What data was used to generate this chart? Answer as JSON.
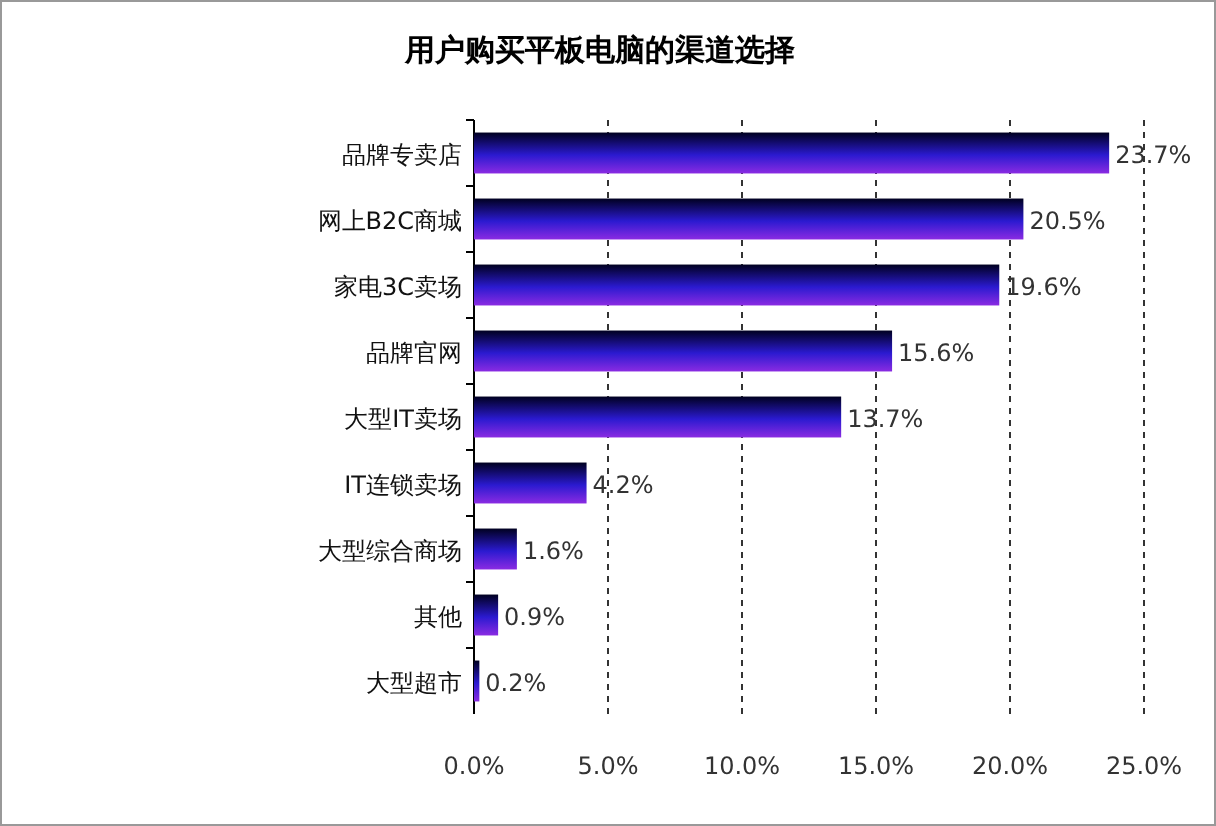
{
  "chart_data": {
    "type": "bar",
    "orientation": "horizontal",
    "title": "用户购买平板电脑的渠道选择",
    "categories": [
      "品牌专卖店",
      "网上B2C商城",
      "家电3C卖场",
      "品牌官网",
      "大型IT卖场",
      "IT连锁卖场",
      "大型综合商场",
      "其他",
      "大型超市"
    ],
    "values": [
      23.7,
      20.5,
      19.6,
      15.6,
      13.7,
      4.2,
      1.6,
      0.9,
      0.2
    ],
    "value_labels": [
      "23.7%",
      "20.5%",
      "19.6%",
      "15.6%",
      "13.7%",
      "4.2%",
      "1.6%",
      "0.9%",
      "0.2%"
    ],
    "color": "#2b1ad0",
    "xlim": [
      0,
      25
    ],
    "xticks": [
      {
        "value": 0,
        "label": "0.0%"
      },
      {
        "value": 5,
        "label": "5.0%"
      },
      {
        "value": 10,
        "label": "10.0%"
      },
      {
        "value": 15,
        "label": "15.0%"
      },
      {
        "value": 20,
        "label": "20.0%"
      },
      {
        "value": 25,
        "label": "25.0%"
      }
    ],
    "grid": "x"
  }
}
